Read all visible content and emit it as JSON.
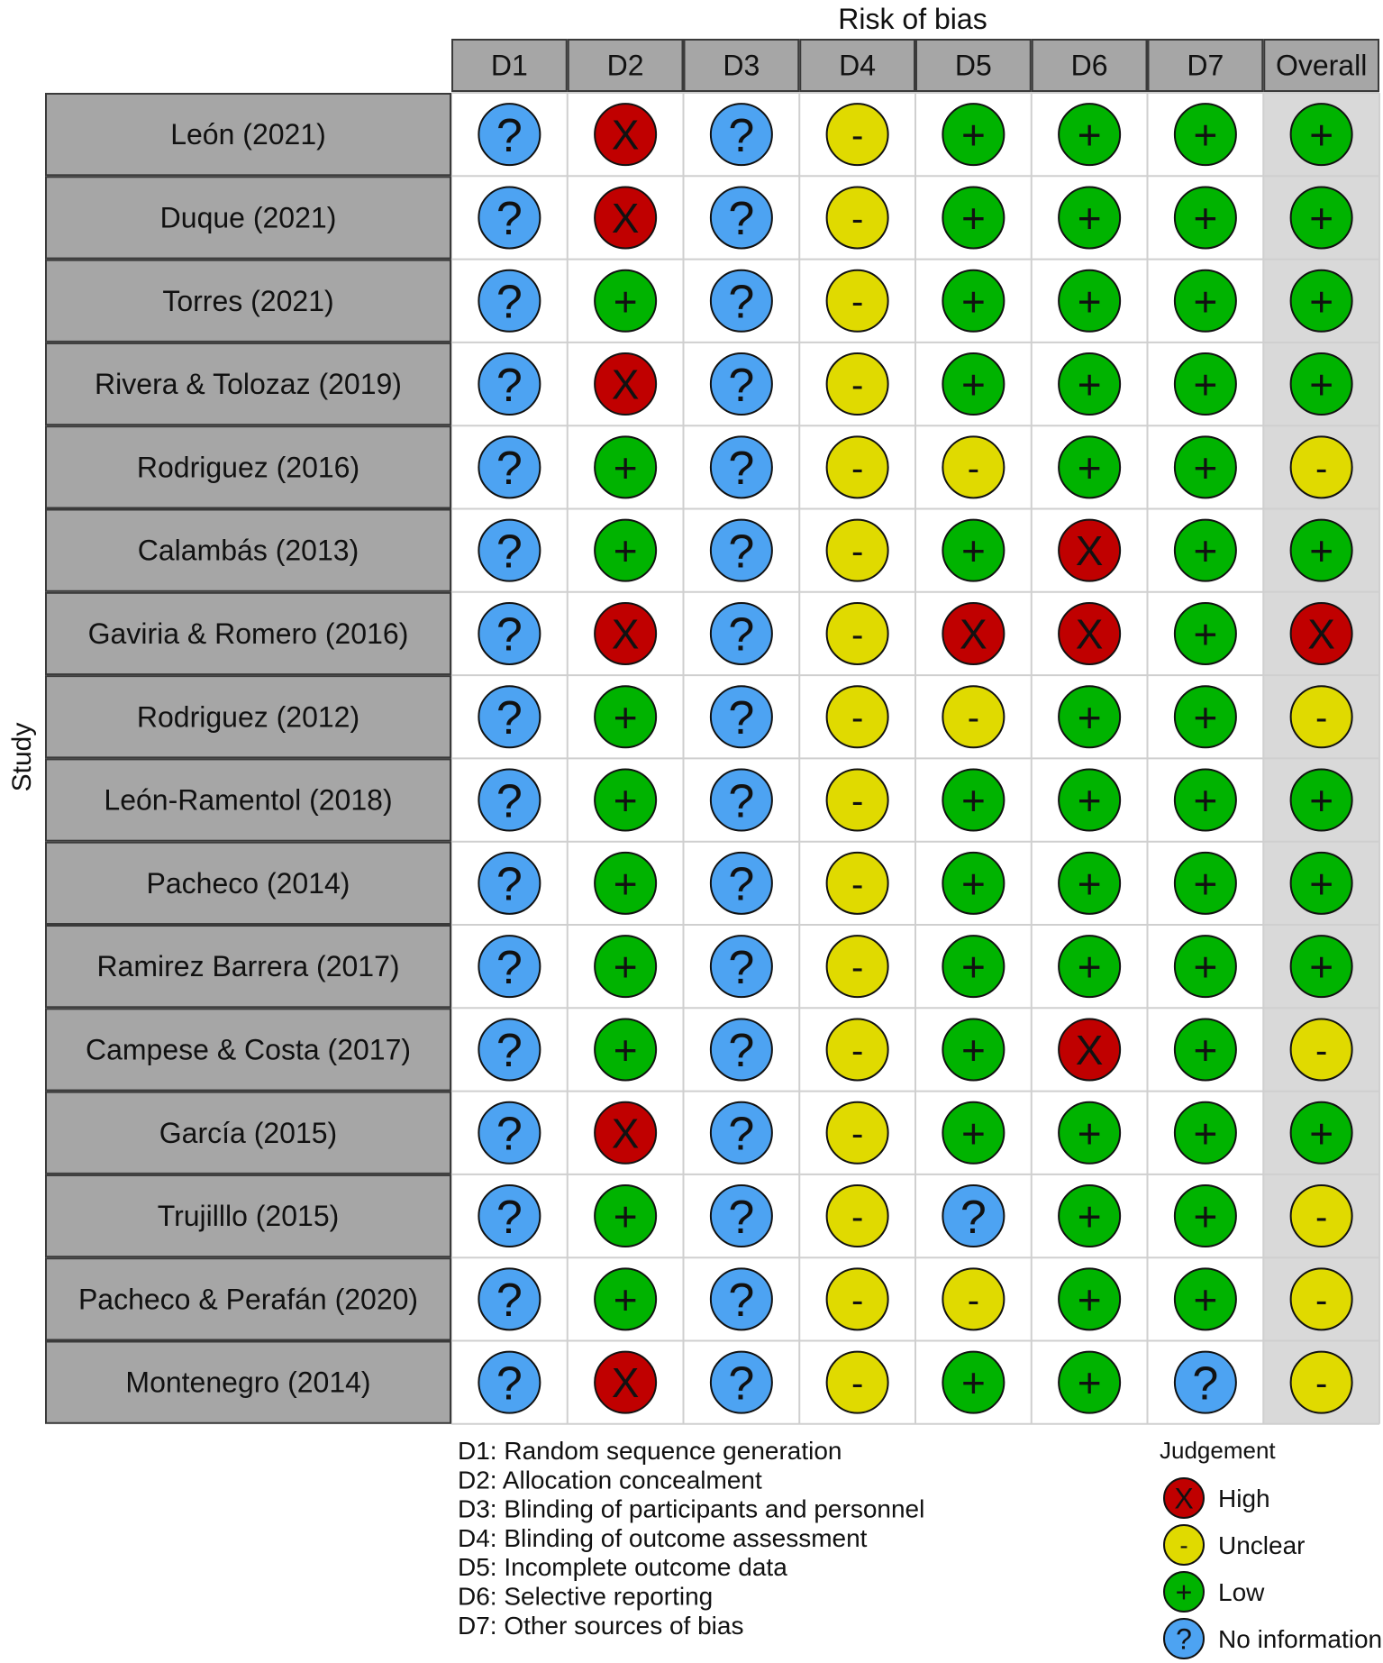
{
  "chart_data": {
    "type": "table",
    "title": "Risk of bias",
    "ylabel": "Study",
    "columns": [
      "D1",
      "D2",
      "D3",
      "D4",
      "D5",
      "D6",
      "D7",
      "Overall"
    ],
    "studies": [
      "León (2021)",
      "Duque (2021)",
      "Torres (2021)",
      "Rivera & Tolozaz (2019)",
      "Rodriguez (2016)",
      "Calambás (2013)",
      "Gaviria & Romero (2016)",
      "Rodriguez (2012)",
      "León-Ramentol (2018)",
      "Pacheco (2014)",
      "Ramirez Barrera (2017)",
      "Campese & Costa (2017)",
      "García (2015)",
      "Trujilllo (2015)",
      "Pacheco & Perafán (2020)",
      "Montenegro (2014)"
    ],
    "judgements": [
      [
        "N",
        "H",
        "N",
        "U",
        "L",
        "L",
        "L",
        "L"
      ],
      [
        "N",
        "H",
        "N",
        "U",
        "L",
        "L",
        "L",
        "L"
      ],
      [
        "N",
        "L",
        "N",
        "U",
        "L",
        "L",
        "L",
        "L"
      ],
      [
        "N",
        "H",
        "N",
        "U",
        "L",
        "L",
        "L",
        "L"
      ],
      [
        "N",
        "L",
        "N",
        "U",
        "U",
        "L",
        "L",
        "U"
      ],
      [
        "N",
        "L",
        "N",
        "U",
        "L",
        "H",
        "L",
        "L"
      ],
      [
        "N",
        "H",
        "N",
        "U",
        "H",
        "H",
        "L",
        "H"
      ],
      [
        "N",
        "L",
        "N",
        "U",
        "U",
        "L",
        "L",
        "U"
      ],
      [
        "N",
        "L",
        "N",
        "U",
        "L",
        "L",
        "L",
        "L"
      ],
      [
        "N",
        "L",
        "N",
        "U",
        "L",
        "L",
        "L",
        "L"
      ],
      [
        "N",
        "L",
        "N",
        "U",
        "L",
        "L",
        "L",
        "L"
      ],
      [
        "N",
        "L",
        "N",
        "U",
        "L",
        "H",
        "L",
        "U"
      ],
      [
        "N",
        "H",
        "N",
        "U",
        "L",
        "L",
        "L",
        "L"
      ],
      [
        "N",
        "L",
        "N",
        "U",
        "N",
        "L",
        "L",
        "U"
      ],
      [
        "N",
        "L",
        "N",
        "U",
        "U",
        "L",
        "L",
        "U"
      ],
      [
        "N",
        "H",
        "N",
        "U",
        "L",
        "L",
        "N",
        "U"
      ]
    ],
    "domain_definitions": [
      "D1: Random sequence generation",
      "D2: Allocation concealment",
      "D3: Blinding of participants and personnel",
      "D4: Blinding of outcome assessment",
      "D5: Incomplete outcome data",
      "D6: Selective reporting",
      "D7: Other sources of bias"
    ],
    "legend": {
      "title": "Judgement",
      "items": [
        {
          "key": "H",
          "label": "High",
          "symbol": "X",
          "color": "#c00000"
        },
        {
          "key": "U",
          "label": "Unclear",
          "symbol": "-",
          "color": "#e0da00"
        },
        {
          "key": "L",
          "label": "Low",
          "symbol": "+",
          "color": "#00b300"
        },
        {
          "key": "N",
          "label": "No information",
          "symbol": "?",
          "color": "#4da3f2"
        }
      ]
    }
  }
}
